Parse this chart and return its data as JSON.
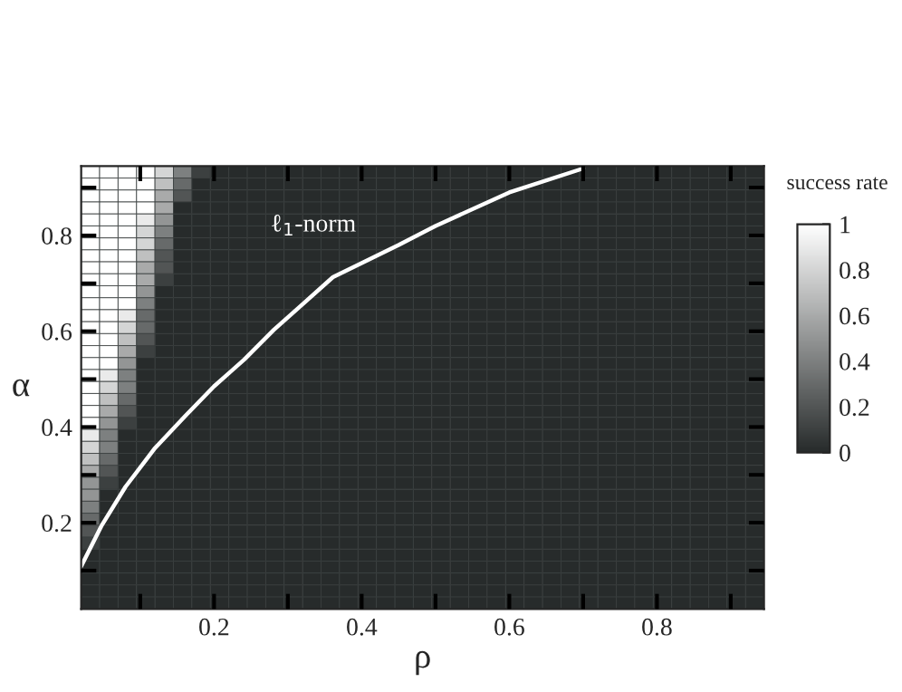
{
  "chart_data": {
    "type": "heatmap",
    "xlabel": "ρ",
    "ylabel": "α",
    "clabel": "success rate",
    "x": [
      0.0325,
      0.0575,
      0.0825,
      0.1075,
      0.1325,
      0.1575,
      0.1825,
      0.2075,
      0.2325,
      0.2575,
      0.2825,
      0.3075,
      0.3325,
      0.3575,
      0.3825,
      0.4075,
      0.4325,
      0.4575,
      0.4825,
      0.5075,
      0.5325,
      0.5575,
      0.5825,
      0.6075,
      0.6325,
      0.6575,
      0.6825,
      0.7075,
      0.7325,
      0.7575,
      0.7825,
      0.8075,
      0.8325,
      0.8575,
      0.8825,
      0.9075,
      0.9325
    ],
    "y": [
      0.9325,
      0.9075,
      0.8825,
      0.8575,
      0.8325,
      0.8075,
      0.7825,
      0.7575,
      0.7325,
      0.7075,
      0.6825,
      0.6575,
      0.6325,
      0.6075,
      0.5825,
      0.5575,
      0.5325,
      0.5075,
      0.4825,
      0.4575,
      0.4325,
      0.4075,
      0.3825,
      0.3575,
      0.3325,
      0.3075,
      0.2825,
      0.2575,
      0.2325,
      0.2075,
      0.1825,
      0.1575,
      0.1325,
      0.1075,
      0.0825,
      0.0575,
      0.0325
    ],
    "cells": [
      [
        1,
        1,
        1,
        1,
        0.8,
        0.4,
        0.1,
        0,
        0,
        0,
        0,
        0,
        0,
        0,
        0,
        0,
        0,
        0,
        0,
        0,
        0,
        0,
        0,
        0,
        0,
        0,
        0,
        0,
        0,
        0,
        0,
        0,
        0,
        0,
        0,
        0,
        0
      ],
      [
        1,
        1,
        1,
        1,
        0.7,
        0.3,
        0,
        0,
        0,
        0,
        0,
        0,
        0,
        0,
        0,
        0,
        0,
        0,
        0,
        0,
        0,
        0,
        0,
        0,
        0,
        0,
        0,
        0,
        0,
        0,
        0,
        0,
        0,
        0,
        0,
        0,
        0
      ],
      [
        1,
        1,
        1,
        1,
        0.6,
        0.2,
        0,
        0,
        0,
        0,
        0,
        0,
        0,
        0,
        0,
        0,
        0,
        0,
        0,
        0,
        0,
        0,
        0,
        0,
        0,
        0,
        0,
        0,
        0,
        0,
        0,
        0,
        0,
        0,
        0,
        0,
        0
      ],
      [
        1,
        1,
        1,
        1,
        0.6,
        0,
        0,
        0,
        0,
        0,
        0,
        0,
        0,
        0,
        0,
        0,
        0,
        0,
        0,
        0,
        0,
        0,
        0,
        0,
        0,
        0,
        0,
        0,
        0,
        0,
        0,
        0,
        0,
        0,
        0,
        0,
        0
      ],
      [
        1,
        1,
        1,
        0.9,
        0.5,
        0,
        0,
        0,
        0,
        0,
        0,
        0,
        0,
        0,
        0,
        0,
        0,
        0,
        0,
        0,
        0,
        0,
        0,
        0,
        0,
        0,
        0,
        0,
        0,
        0,
        0,
        0,
        0,
        0,
        0,
        0,
        0
      ],
      [
        1,
        1,
        1,
        0.8,
        0.4,
        0,
        0,
        0,
        0,
        0,
        0,
        0,
        0,
        0,
        0,
        0,
        0,
        0,
        0,
        0,
        0,
        0,
        0,
        0,
        0,
        0,
        0,
        0,
        0,
        0,
        0,
        0,
        0,
        0,
        0,
        0,
        0
      ],
      [
        1,
        1,
        1,
        0.8,
        0.3,
        0,
        0,
        0,
        0,
        0,
        0,
        0,
        0,
        0,
        0,
        0,
        0,
        0,
        0,
        0,
        0,
        0,
        0,
        0,
        0,
        0,
        0,
        0,
        0,
        0,
        0,
        0,
        0,
        0,
        0,
        0,
        0
      ],
      [
        1,
        1,
        1,
        0.7,
        0.2,
        0,
        0,
        0,
        0,
        0,
        0,
        0,
        0,
        0,
        0,
        0,
        0,
        0,
        0,
        0,
        0,
        0,
        0,
        0,
        0,
        0,
        0,
        0,
        0,
        0,
        0,
        0,
        0,
        0,
        0,
        0,
        0
      ],
      [
        1,
        1,
        1,
        0.6,
        0.2,
        0,
        0,
        0,
        0,
        0,
        0,
        0,
        0,
        0,
        0,
        0,
        0,
        0,
        0,
        0,
        0,
        0,
        0,
        0,
        0,
        0,
        0,
        0,
        0,
        0,
        0,
        0,
        0,
        0,
        0,
        0,
        0
      ],
      [
        1,
        1,
        1,
        0.6,
        0.1,
        0,
        0,
        0,
        0,
        0,
        0,
        0,
        0,
        0,
        0,
        0,
        0,
        0,
        0,
        0,
        0,
        0,
        0,
        0,
        0,
        0,
        0,
        0,
        0,
        0,
        0,
        0,
        0,
        0,
        0,
        0,
        0
      ],
      [
        1,
        1,
        1,
        0.5,
        0,
        0,
        0,
        0,
        0,
        0,
        0,
        0,
        0,
        0,
        0,
        0,
        0,
        0,
        0,
        0,
        0,
        0,
        0,
        0,
        0,
        0,
        0,
        0,
        0,
        0,
        0,
        0,
        0,
        0,
        0,
        0,
        0
      ],
      [
        1,
        1,
        1,
        0.4,
        0,
        0,
        0,
        0,
        0,
        0,
        0,
        0,
        0,
        0,
        0,
        0,
        0,
        0,
        0,
        0,
        0,
        0,
        0,
        0,
        0,
        0,
        0,
        0,
        0,
        0,
        0,
        0,
        0,
        0,
        0,
        0,
        0
      ],
      [
        1,
        1,
        0.9,
        0.3,
        0,
        0,
        0,
        0,
        0,
        0,
        0,
        0,
        0,
        0,
        0,
        0,
        0,
        0,
        0,
        0,
        0,
        0,
        0,
        0,
        0,
        0,
        0,
        0,
        0,
        0,
        0,
        0,
        0,
        0,
        0,
        0,
        0
      ],
      [
        1,
        1,
        0.8,
        0.3,
        0,
        0,
        0,
        0,
        0,
        0,
        0,
        0,
        0,
        0,
        0,
        0,
        0,
        0,
        0,
        0,
        0,
        0,
        0,
        0,
        0,
        0,
        0,
        0,
        0,
        0,
        0,
        0,
        0,
        0,
        0,
        0,
        0
      ],
      [
        1,
        1,
        0.7,
        0.2,
        0,
        0,
        0,
        0,
        0,
        0,
        0,
        0,
        0,
        0,
        0,
        0,
        0,
        0,
        0,
        0,
        0,
        0,
        0,
        0,
        0,
        0,
        0,
        0,
        0,
        0,
        0,
        0,
        0,
        0,
        0,
        0,
        0
      ],
      [
        1,
        1,
        0.6,
        0.1,
        0,
        0,
        0,
        0,
        0,
        0,
        0,
        0,
        0,
        0,
        0,
        0,
        0,
        0,
        0,
        0,
        0,
        0,
        0,
        0,
        0,
        0,
        0,
        0,
        0,
        0,
        0,
        0,
        0,
        0,
        0,
        0,
        0
      ],
      [
        1,
        1,
        0.5,
        0,
        0,
        0,
        0,
        0,
        0,
        0,
        0,
        0,
        0,
        0,
        0,
        0,
        0,
        0,
        0,
        0,
        0,
        0,
        0,
        0,
        0,
        0,
        0,
        0,
        0,
        0,
        0,
        0,
        0,
        0,
        0,
        0,
        0
      ],
      [
        1,
        0.9,
        0.4,
        0,
        0,
        0,
        0,
        0,
        0,
        0,
        0,
        0,
        0,
        0,
        0,
        0,
        0,
        0,
        0,
        0,
        0,
        0,
        0,
        0,
        0,
        0,
        0,
        0,
        0,
        0,
        0,
        0,
        0,
        0,
        0,
        0,
        0
      ],
      [
        1,
        0.8,
        0.4,
        0,
        0,
        0,
        0,
        0,
        0,
        0,
        0,
        0,
        0,
        0,
        0,
        0,
        0,
        0,
        0,
        0,
        0,
        0,
        0,
        0,
        0,
        0,
        0,
        0,
        0,
        0,
        0,
        0,
        0,
        0,
        0,
        0,
        0
      ],
      [
        1,
        0.7,
        0.3,
        0,
        0,
        0,
        0,
        0,
        0,
        0,
        0,
        0,
        0,
        0,
        0,
        0,
        0,
        0,
        0,
        0,
        0,
        0,
        0,
        0,
        0,
        0,
        0,
        0,
        0,
        0,
        0,
        0,
        0,
        0,
        0,
        0,
        0
      ],
      [
        1,
        0.6,
        0.2,
        0,
        0,
        0,
        0,
        0,
        0,
        0,
        0,
        0,
        0,
        0,
        0,
        0,
        0,
        0,
        0,
        0,
        0,
        0,
        0,
        0,
        0,
        0,
        0,
        0,
        0,
        0,
        0,
        0,
        0,
        0,
        0,
        0,
        0
      ],
      [
        1,
        0.5,
        0.1,
        0,
        0,
        0,
        0,
        0,
        0,
        0,
        0,
        0,
        0,
        0,
        0,
        0,
        0,
        0,
        0,
        0,
        0,
        0,
        0,
        0,
        0,
        0,
        0,
        0,
        0,
        0,
        0,
        0,
        0,
        0,
        0,
        0,
        0
      ],
      [
        0.9,
        0.4,
        0,
        0,
        0,
        0,
        0,
        0,
        0,
        0,
        0,
        0,
        0,
        0,
        0,
        0,
        0,
        0,
        0,
        0,
        0,
        0,
        0,
        0,
        0,
        0,
        0,
        0,
        0,
        0,
        0,
        0,
        0,
        0,
        0,
        0,
        0
      ],
      [
        0.8,
        0.4,
        0,
        0,
        0,
        0,
        0,
        0,
        0,
        0,
        0,
        0,
        0,
        0,
        0,
        0,
        0,
        0,
        0,
        0,
        0,
        0,
        0,
        0,
        0,
        0,
        0,
        0,
        0,
        0,
        0,
        0,
        0,
        0,
        0,
        0,
        0
      ],
      [
        0.7,
        0.3,
        0,
        0,
        0,
        0,
        0,
        0,
        0,
        0,
        0,
        0,
        0,
        0,
        0,
        0,
        0,
        0,
        0,
        0,
        0,
        0,
        0,
        0,
        0,
        0,
        0,
        0,
        0,
        0,
        0,
        0,
        0,
        0,
        0,
        0,
        0
      ],
      [
        0.6,
        0.2,
        0,
        0,
        0,
        0,
        0,
        0,
        0,
        0,
        0,
        0,
        0,
        0,
        0,
        0,
        0,
        0,
        0,
        0,
        0,
        0,
        0,
        0,
        0,
        0,
        0,
        0,
        0,
        0,
        0,
        0,
        0,
        0,
        0,
        0,
        0
      ],
      [
        0.5,
        0.1,
        0,
        0,
        0,
        0,
        0,
        0,
        0,
        0,
        0,
        0,
        0,
        0,
        0,
        0,
        0,
        0,
        0,
        0,
        0,
        0,
        0,
        0,
        0,
        0,
        0,
        0,
        0,
        0,
        0,
        0,
        0,
        0,
        0,
        0,
        0
      ],
      [
        0.5,
        0,
        0,
        0,
        0,
        0,
        0,
        0,
        0,
        0,
        0,
        0,
        0,
        0,
        0,
        0,
        0,
        0,
        0,
        0,
        0,
        0,
        0,
        0,
        0,
        0,
        0,
        0,
        0,
        0,
        0,
        0,
        0,
        0,
        0,
        0,
        0
      ],
      [
        0.4,
        0,
        0,
        0,
        0,
        0,
        0,
        0,
        0,
        0,
        0,
        0,
        0,
        0,
        0,
        0,
        0,
        0,
        0,
        0,
        0,
        0,
        0,
        0,
        0,
        0,
        0,
        0,
        0,
        0,
        0,
        0,
        0,
        0,
        0,
        0,
        0
      ],
      [
        0.3,
        0,
        0,
        0,
        0,
        0,
        0,
        0,
        0,
        0,
        0,
        0,
        0,
        0,
        0,
        0,
        0,
        0,
        0,
        0,
        0,
        0,
        0,
        0,
        0,
        0,
        0,
        0,
        0,
        0,
        0,
        0,
        0,
        0,
        0,
        0,
        0
      ],
      [
        0.2,
        0,
        0,
        0,
        0,
        0,
        0,
        0,
        0,
        0,
        0,
        0,
        0,
        0,
        0,
        0,
        0,
        0,
        0,
        0,
        0,
        0,
        0,
        0,
        0,
        0,
        0,
        0,
        0,
        0,
        0,
        0,
        0,
        0,
        0,
        0,
        0
      ],
      [
        0.1,
        0,
        0,
        0,
        0,
        0,
        0,
        0,
        0,
        0,
        0,
        0,
        0,
        0,
        0,
        0,
        0,
        0,
        0,
        0,
        0,
        0,
        0,
        0,
        0,
        0,
        0,
        0,
        0,
        0,
        0,
        0,
        0,
        0,
        0,
        0,
        0
      ],
      [
        0,
        0,
        0,
        0,
        0,
        0,
        0,
        0,
        0,
        0,
        0,
        0,
        0,
        0,
        0,
        0,
        0,
        0,
        0,
        0,
        0,
        0,
        0,
        0,
        0,
        0,
        0,
        0,
        0,
        0,
        0,
        0,
        0,
        0,
        0,
        0,
        0
      ],
      [
        0,
        0,
        0,
        0,
        0,
        0,
        0,
        0,
        0,
        0,
        0,
        0,
        0,
        0,
        0,
        0,
        0,
        0,
        0,
        0,
        0,
        0,
        0,
        0,
        0,
        0,
        0,
        0,
        0,
        0,
        0,
        0,
        0,
        0,
        0,
        0,
        0
      ],
      [
        0,
        0,
        0,
        0,
        0,
        0,
        0,
        0,
        0,
        0,
        0,
        0,
        0,
        0,
        0,
        0,
        0,
        0,
        0,
        0,
        0,
        0,
        0,
        0,
        0,
        0,
        0,
        0,
        0,
        0,
        0,
        0,
        0,
        0,
        0,
        0,
        0
      ],
      [
        0,
        0,
        0,
        0,
        0,
        0,
        0,
        0,
        0,
        0,
        0,
        0,
        0,
        0,
        0,
        0,
        0,
        0,
        0,
        0,
        0,
        0,
        0,
        0,
        0,
        0,
        0,
        0,
        0,
        0,
        0,
        0,
        0,
        0,
        0,
        0,
        0
      ],
      [
        0,
        0,
        0,
        0,
        0,
        0,
        0,
        0,
        0,
        0,
        0,
        0,
        0,
        0,
        0,
        0,
        0,
        0,
        0,
        0,
        0,
        0,
        0,
        0,
        0,
        0,
        0,
        0,
        0,
        0,
        0,
        0,
        0,
        0,
        0,
        0,
        0
      ]
    ],
    "colors": [
      "#272b2b",
      "#ffffff"
    ],
    "clim": [
      0,
      1
    ],
    "cticks": [
      0,
      0.2,
      0.4,
      0.6,
      0.8,
      1
    ],
    "series": [
      {
        "type": "line",
        "color": "#ffffff",
        "x": [
          0.02,
          0.048,
          0.08,
          0.12,
          0.161,
          0.2,
          0.241,
          0.281,
          0.321,
          0.361,
          0.45,
          0.5,
          0.6,
          0.7
        ],
        "values": [
          0.109,
          0.195,
          0.275,
          0.356,
          0.423,
          0.485,
          0.541,
          0.603,
          0.658,
          0.713,
          0.78,
          0.82,
          0.89,
          0.94
        ]
      }
    ],
    "annotations": [
      "ℓ$_{1}$-norm"
    ],
    "xlim": [
      0.02,
      0.945
    ],
    "ylim": [
      0.02,
      0.945
    ],
    "xticks": [
      {
        "value": 0.1,
        "label": null
      },
      0.2,
      {
        "value": 0.3,
        "label": null
      },
      0.4,
      {
        "value": 0.5,
        "label": null
      },
      0.6,
      {
        "value": 0.7,
        "label": null
      },
      0.8,
      {
        "value": 0.9,
        "label": null
      }
    ],
    "yticks": [
      {
        "value": 0.1,
        "label": null
      },
      0.2,
      {
        "value": 0.3,
        "label": null
      },
      0.4,
      {
        "value": 0.5,
        "label": null
      },
      0.6,
      {
        "value": 0.7,
        "label": null
      },
      0.8,
      {
        "value": 0.9,
        "label": null
      }
    ]
  }
}
